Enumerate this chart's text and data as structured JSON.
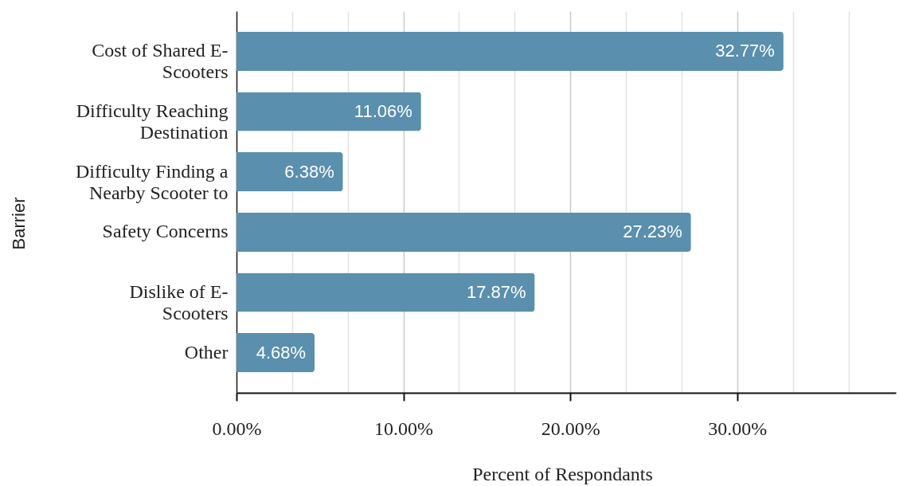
{
  "chart_data": {
    "type": "bar",
    "orientation": "horizontal",
    "xlabel": "Percent of Respondants",
    "ylabel": "Barrier",
    "categories": [
      "Cost of Shared E-Scooters",
      "Difficulty Reaching Destination",
      "Difficulty Finding a Nearby Scooter to",
      "Safety Concerns",
      "Dislike of E-Scooters",
      "Other"
    ],
    "values": [
      32.77,
      11.06,
      6.38,
      27.23,
      17.87,
      4.68
    ],
    "value_labels": [
      "32.77%",
      "11.06%",
      "6.38%",
      "27.23%",
      "17.87%",
      "4.68%"
    ],
    "color": "#5a8fae",
    "xlim": [
      0,
      39.5
    ],
    "xticks": [
      {
        "value": 0,
        "label": "0.00%"
      },
      {
        "value": 3.33,
        "label": null
      },
      {
        "value": 6.67,
        "label": null
      },
      {
        "value": 10,
        "label": "10.00%"
      },
      {
        "value": 13.33,
        "label": null
      },
      {
        "value": 16.67,
        "label": null
      },
      {
        "value": 20,
        "label": "20.00%"
      },
      {
        "value": 23.33,
        "label": null
      },
      {
        "value": 26.67,
        "label": null
      },
      {
        "value": 30,
        "label": "30.00%"
      },
      {
        "value": 33.33,
        "label": null
      },
      {
        "value": 36.67,
        "label": null
      }
    ],
    "grid": "x"
  }
}
